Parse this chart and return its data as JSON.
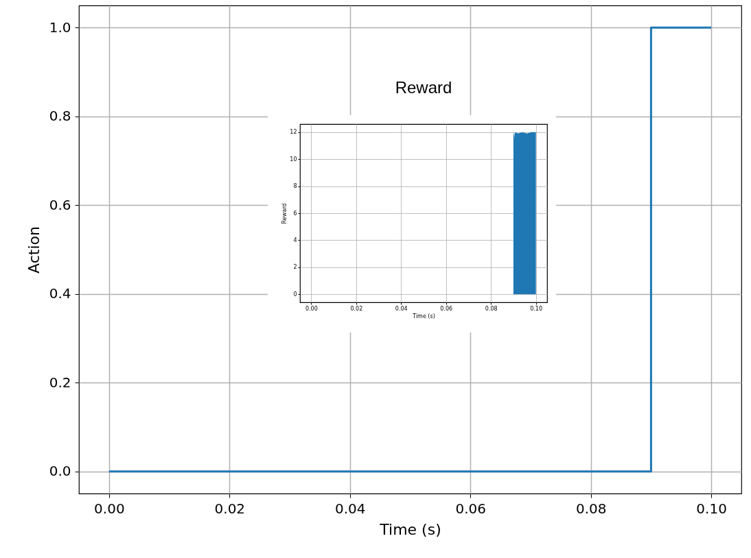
{
  "chart_data": [
    {
      "type": "step",
      "xlabel": "Time (s)",
      "ylabel": "Action",
      "x": [
        0,
        0.09,
        0.1
      ],
      "series": [
        {
          "color": "#1f77b4",
          "values": [
            0,
            1,
            1
          ]
        }
      ],
      "xlim": [
        -0.005,
        0.105
      ],
      "xticks": [
        {
          "value": 0,
          "label": "0.00"
        },
        {
          "value": 0.02,
          "label": "0.02"
        },
        {
          "value": 0.04,
          "label": "0.04"
        },
        {
          "value": 0.06,
          "label": "0.06"
        },
        {
          "value": 0.08,
          "label": "0.08"
        },
        {
          "value": 0.1,
          "label": "0.10"
        }
      ],
      "ylim": [
        -0.05,
        1.05
      ],
      "yticks": [
        {
          "value": 0,
          "label": "0.0"
        },
        {
          "value": 0.2,
          "label": "0.2"
        },
        {
          "value": 0.4,
          "label": "0.4"
        },
        {
          "value": 0.6,
          "label": "0.6"
        },
        {
          "value": 0.8,
          "label": "0.8"
        },
        {
          "value": 1,
          "label": "1.0"
        }
      ],
      "grid": true
    },
    {
      "type": "area",
      "title": "Reward",
      "xlabel": "Time (s)",
      "ylabel": "Reward",
      "x": [
        0.09,
        0.0901,
        0.0902,
        0.0903,
        0.0904,
        0.0906,
        0.0908,
        0.091,
        0.092,
        0.094,
        0.096,
        0.098,
        0.1
      ],
      "series": [
        {
          "color": "#1f77b4",
          "values": [
            11.8,
            12,
            11.7,
            12,
            11.5,
            12,
            11.9,
            12,
            11.9,
            12,
            11.9,
            12,
            12
          ]
        }
      ],
      "xlim": [
        -0.005,
        0.105
      ],
      "xticks": [
        {
          "value": 0,
          "label": "0.00"
        },
        {
          "value": 0.02,
          "label": "0.02"
        },
        {
          "value": 0.04,
          "label": "0.04"
        },
        {
          "value": 0.06,
          "label": "0.06"
        },
        {
          "value": 0.08,
          "label": "0.08"
        },
        {
          "value": 0.1,
          "label": "0.10"
        }
      ],
      "ylim": [
        -0.6,
        12.6
      ],
      "yticks": [
        0,
        2,
        4,
        6,
        8,
        10,
        12
      ],
      "grid": true
    }
  ]
}
